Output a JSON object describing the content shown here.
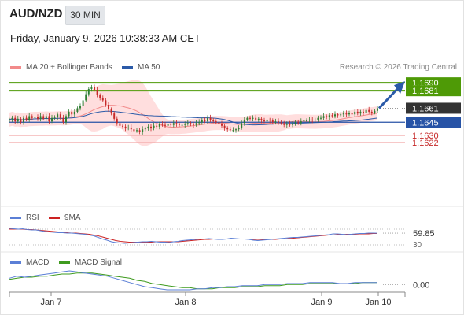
{
  "header": {
    "symbol": "AUD/NZD",
    "timeframe": "30 MIN",
    "datetime": "Friday, January 9, 2026 10:38:33 AM CET"
  },
  "copyright": "Research © 2026 Trading Central",
  "colors": {
    "up": "#2e7d32",
    "down": "#c62828",
    "ma20": "#f28a8a",
    "band": "#ffd3d3",
    "ma50": "#2b5aa8",
    "resistance": "#4e9a06",
    "support_line": "#f2a8a8",
    "pivot": "#2753a6",
    "last": "#333333",
    "arrow": "#2b5aa8",
    "rsi": "#5b7fd6",
    "rsi_ma": "#cc2222",
    "macd": "#5b7fd6",
    "macd_signal": "#3f9b1f"
  },
  "chart_data": [
    {
      "type": "candlestick",
      "legend": [
        {
          "name": "MA 20 + Bollinger Bands",
          "color": "#f28a8a"
        },
        {
          "name": "MA 50",
          "color": "#2b5aa8"
        }
      ],
      "ylim": [
        1.156,
        1.17
      ],
      "x_ticks": [
        "Jan 7",
        "Jan 8",
        "Jan 9",
        "Jan 10"
      ],
      "resistance_levels": [
        "1.1690",
        "1.1681"
      ],
      "last_price": "1.1661",
      "pivot": "1.1645",
      "support_levels": [
        "1.1630",
        "1.1622"
      ],
      "forecast": {
        "from": 1.1661,
        "to": 1.169
      },
      "close": [
        1.1648,
        1.165,
        1.1646,
        1.1649,
        1.1645,
        1.165,
        1.1648,
        1.1652,
        1.165,
        1.1651,
        1.1649,
        1.1652,
        1.1649,
        1.1652,
        1.1646,
        1.165,
        1.1651,
        1.1654,
        1.165,
        1.1645,
        1.1652,
        1.1657,
        1.1654,
        1.1657,
        1.1661,
        1.1664,
        1.167,
        1.1677,
        1.1683,
        1.1685,
        1.1682,
        1.1676,
        1.1673,
        1.167,
        1.1665,
        1.166,
        1.1655,
        1.1649,
        1.1644,
        1.1641,
        1.164,
        1.1638,
        1.1639,
        1.1637,
        1.1635,
        1.1636,
        1.1634,
        1.1637,
        1.1638,
        1.164,
        1.1638,
        1.1641,
        1.164,
        1.1643,
        1.1642,
        1.1641,
        1.1643,
        1.1642,
        1.1644,
        1.1643,
        1.1642,
        1.1642,
        1.1643,
        1.1644,
        1.1643,
        1.1642,
        1.1644,
        1.1645,
        1.1648,
        1.1646,
        1.165,
        1.1648,
        1.1646,
        1.1645,
        1.1643,
        1.1641,
        1.1638,
        1.1637,
        1.1636,
        1.1636,
        1.1637,
        1.1639,
        1.1644,
        1.1648,
        1.165,
        1.1649,
        1.165,
        1.1648,
        1.1649,
        1.1647,
        1.1646,
        1.1648,
        1.1647,
        1.1645,
        1.1646,
        1.1645,
        1.1644,
        1.1642,
        1.1643,
        1.1642,
        1.1644,
        1.1645,
        1.1644,
        1.1646,
        1.1647,
        1.1647,
        1.1648,
        1.1647,
        1.1648,
        1.165,
        1.165,
        1.1652,
        1.1651,
        1.1653,
        1.1652,
        1.1654,
        1.1653,
        1.1654,
        1.1655,
        1.1654,
        1.1656,
        1.1654,
        1.1657,
        1.1655,
        1.1657,
        1.1656,
        1.1659,
        1.1657,
        1.1656,
        1.1658,
        1.1661
      ]
    },
    {
      "type": "line",
      "legend": [
        {
          "name": "RSI",
          "color": "#5b7fd6"
        },
        {
          "name": "9MA",
          "color": "#cc2222"
        }
      ],
      "ylim": [
        20,
        80
      ],
      "reference_levels": [
        70,
        30
      ],
      "last_value": "59.85",
      "visible_tick": "30",
      "rsi": [
        72,
        71,
        70,
        71,
        69,
        68,
        68,
        66,
        64,
        63,
        62,
        61,
        61,
        60,
        60,
        59,
        58,
        57,
        55,
        53,
        49,
        45,
        42,
        38,
        36,
        35,
        34,
        35,
        36,
        37,
        38,
        38,
        39,
        38,
        37,
        37,
        36,
        38,
        39,
        41,
        42,
        43,
        44,
        45,
        45,
        46,
        45,
        44,
        44,
        45,
        47,
        46,
        45,
        45,
        44,
        42,
        41,
        42,
        43,
        44,
        45,
        46,
        47,
        48,
        49,
        49,
        50,
        51,
        52,
        53,
        54,
        55,
        56,
        58,
        58,
        57,
        56,
        57,
        58,
        59,
        59,
        60,
        60,
        59.85
      ],
      "ma9": [
        70,
        70,
        70,
        70,
        69,
        69,
        68,
        67,
        66,
        65,
        64,
        63,
        62,
        61,
        60,
        60,
        59,
        58,
        57,
        55,
        53,
        50,
        47,
        44,
        41,
        39,
        38,
        37,
        37,
        37,
        37,
        37,
        37,
        38,
        38,
        38,
        38,
        38,
        38,
        39,
        40,
        41,
        42,
        43,
        44,
        44,
        45,
        45,
        45,
        45,
        45,
        45,
        45,
        45,
        45,
        44,
        44,
        44,
        44,
        44,
        44,
        45,
        45,
        46,
        47,
        48,
        49,
        50,
        51,
        52,
        53,
        54,
        55,
        55,
        56,
        56,
        57,
        57,
        57,
        58,
        58,
        58,
        59,
        59
      ]
    },
    {
      "type": "line",
      "legend": [
        {
          "name": "MACD",
          "color": "#5b7fd6"
        },
        {
          "name": "MACD Signal",
          "color": "#3f9b1f"
        }
      ],
      "last_value": "0.00",
      "macd": [
        0.0006,
        0.0008,
        0.0007,
        0.0008,
        0.0009,
        0.001,
        0.0011,
        0.0012,
        0.0013,
        0.0012,
        0.0011,
        0.001,
        0.0009,
        0.0008,
        0.0006,
        0.0004,
        0.0002,
        0.0,
        -0.0002,
        -0.0003,
        -0.0004,
        -0.0005,
        -0.0005,
        -0.0005,
        -0.0005,
        -0.0004,
        -0.0004,
        -0.0003,
        -0.0003,
        -0.0002,
        -0.0002,
        -0.0001,
        -0.0001,
        -0.0001,
        0.0,
        0.0,
        0.0,
        0.0001,
        0.0001,
        0.0001,
        0.0002,
        0.0002,
        0.0002,
        0.0002,
        0.0001,
        0.0001,
        0.0002,
        0.0002,
        0.0002,
        0.0002
      ],
      "signal": [
        0.0005,
        0.0006,
        0.0007,
        0.0007,
        0.0008,
        0.0008,
        0.0009,
        0.001,
        0.001,
        0.0011,
        0.0011,
        0.0011,
        0.001,
        0.0009,
        0.0008,
        0.0007,
        0.0006,
        0.0004,
        0.0003,
        0.0001,
        0.0,
        -0.0001,
        -0.0002,
        -0.0003,
        -0.0003,
        -0.0004,
        -0.0004,
        -0.0004,
        -0.0003,
        -0.0003,
        -0.0003,
        -0.0002,
        -0.0002,
        -0.0002,
        -0.0001,
        -0.0001,
        -0.0001,
        0.0,
        0.0,
        0.0,
        0.0001,
        0.0001,
        0.0001,
        0.0001,
        0.0001,
        0.0001,
        0.0001,
        0.0002,
        0.0002,
        0.0002
      ]
    }
  ]
}
